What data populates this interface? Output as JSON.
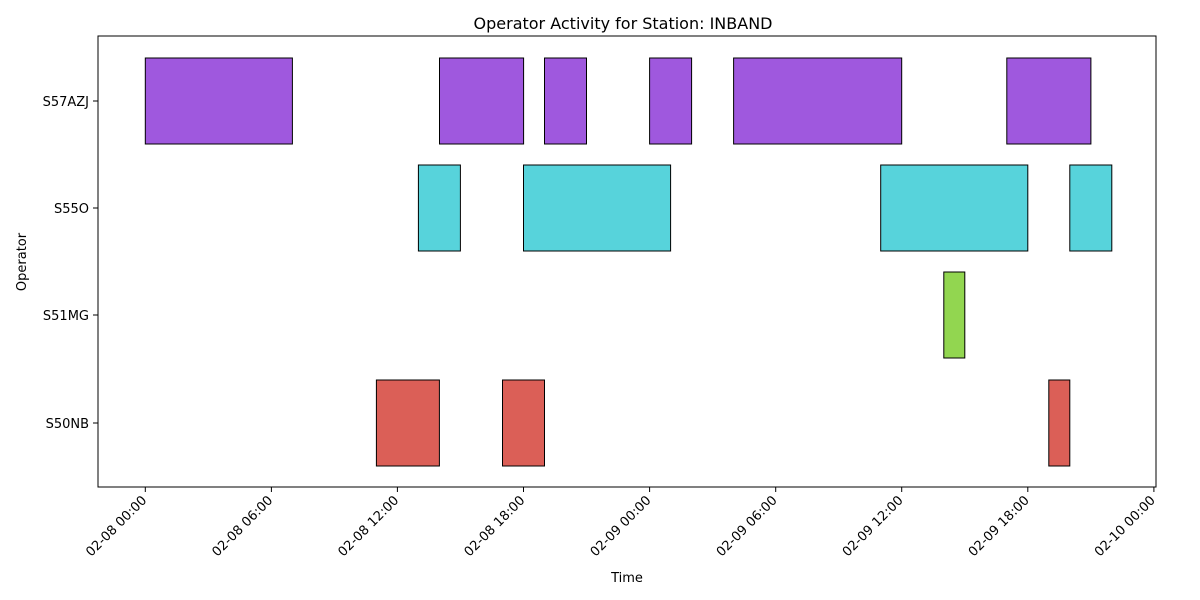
{
  "chart_data": {
    "type": "gantt",
    "title": "Operator Activity for Station: INBAND",
    "xlabel": "Time",
    "ylabel": "Operator",
    "x_ticks": [
      "02-08 00:00",
      "02-08 06:00",
      "02-08 12:00",
      "02-08 18:00",
      "02-09 00:00",
      "02-09 06:00",
      "02-09 12:00",
      "02-09 18:00",
      "02-10 00:00"
    ],
    "xlim_hours": [
      -2.25,
      48.1
    ],
    "grid": false,
    "legend": "none",
    "operators": [
      {
        "name": "S57AZJ",
        "color": "#9f58de",
        "intervals": [
          [
            0,
            7
          ],
          [
            14,
            18
          ],
          [
            19,
            21
          ],
          [
            24,
            26
          ],
          [
            28,
            36
          ],
          [
            41,
            45
          ]
        ]
      },
      {
        "name": "S55O",
        "color": "#57d3db",
        "intervals": [
          [
            13,
            15
          ],
          [
            18,
            25
          ],
          [
            35,
            42
          ],
          [
            44,
            46
          ]
        ]
      },
      {
        "name": "S51MG",
        "color": "#92d650",
        "intervals": [
          [
            38,
            39
          ]
        ]
      },
      {
        "name": "S50NB",
        "color": "#db5f57",
        "intervals": [
          [
            11,
            14
          ],
          [
            17,
            19
          ],
          [
            43,
            44
          ]
        ]
      }
    ]
  }
}
